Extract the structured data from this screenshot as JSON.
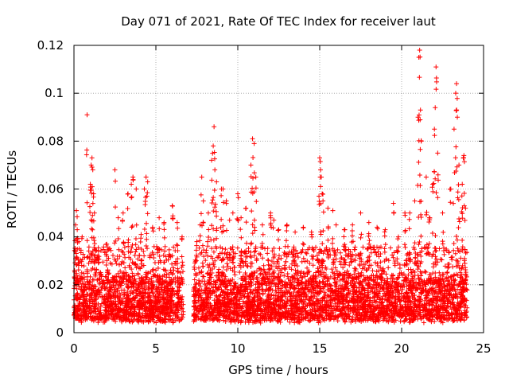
{
  "chart_data": {
    "type": "scatter",
    "title": "Day 071 of 2021, Rate Of TEC Index for receiver laut",
    "xlabel": "GPS time / hours",
    "ylabel": "ROTI / TECUs",
    "xlim": [
      0,
      25
    ],
    "ylim": [
      0,
      0.12
    ],
    "x_ticks": [
      0,
      5,
      10,
      15,
      20,
      25
    ],
    "x_tick_labels": [
      "0",
      "5",
      "10",
      "15",
      "20",
      "25"
    ],
    "y_ticks": [
      0,
      0.02,
      0.04,
      0.06,
      0.08,
      0.1,
      0.12
    ],
    "y_tick_labels": [
      "0",
      "0.02",
      "0.04",
      "0.06",
      "0.08",
      "0.1",
      "0.12"
    ],
    "grid": true,
    "marker": "plus",
    "color": "#ff0000",
    "data_gap_hours": [
      6.7,
      7.3
    ],
    "series": [
      {
        "name": "ROTI",
        "points": [
          [
            0.1,
            0.045
          ],
          [
            0.15,
            0.051
          ],
          [
            0.2,
            0.043
          ],
          [
            0.3,
            0.038
          ],
          [
            0.5,
            0.04
          ],
          [
            0.8,
            0.091
          ],
          [
            1.0,
            0.062
          ],
          [
            1.05,
            0.07
          ],
          [
            1.1,
            0.073
          ],
          [
            1.15,
            0.068
          ],
          [
            1.2,
            0.058
          ],
          [
            1.25,
            0.05
          ],
          [
            1.5,
            0.034
          ],
          [
            2.0,
            0.037
          ],
          [
            2.5,
            0.068
          ],
          [
            2.7,
            0.048
          ],
          [
            3.0,
            0.05
          ],
          [
            3.3,
            0.058
          ],
          [
            3.5,
            0.062
          ],
          [
            3.6,
            0.065
          ],
          [
            3.8,
            0.06
          ],
          [
            4.1,
            0.041
          ],
          [
            4.3,
            0.06
          ],
          [
            4.4,
            0.065
          ],
          [
            4.45,
            0.057
          ],
          [
            4.5,
            0.063
          ],
          [
            4.8,
            0.044
          ],
          [
            5.2,
            0.048
          ],
          [
            5.5,
            0.046
          ],
          [
            6.0,
            0.053
          ],
          [
            6.3,
            0.046
          ],
          [
            6.6,
            0.04
          ],
          [
            7.5,
            0.038
          ],
          [
            7.7,
            0.045
          ],
          [
            7.8,
            0.065
          ],
          [
            7.9,
            0.055
          ],
          [
            8.2,
            0.05
          ],
          [
            8.4,
            0.072
          ],
          [
            8.5,
            0.078
          ],
          [
            8.55,
            0.086
          ],
          [
            8.6,
            0.068
          ],
          [
            8.7,
            0.063
          ],
          [
            9.0,
            0.06
          ],
          [
            9.1,
            0.06
          ],
          [
            9.3,
            0.055
          ],
          [
            9.5,
            0.047
          ],
          [
            9.7,
            0.05
          ],
          [
            10.0,
            0.058
          ],
          [
            10.2,
            0.048
          ],
          [
            10.5,
            0.052
          ],
          [
            10.8,
            0.07
          ],
          [
            10.9,
            0.081
          ],
          [
            11.0,
            0.079
          ],
          [
            11.1,
            0.065
          ],
          [
            11.5,
            0.045
          ],
          [
            12.0,
            0.05
          ],
          [
            12.2,
            0.047
          ],
          [
            12.5,
            0.043
          ],
          [
            13.0,
            0.045
          ],
          [
            13.5,
            0.042
          ],
          [
            14.0,
            0.044
          ],
          [
            14.5,
            0.042
          ],
          [
            15.0,
            0.073
          ],
          [
            15.05,
            0.068
          ],
          [
            15.1,
            0.065
          ],
          [
            15.15,
            0.058
          ],
          [
            15.2,
            0.055
          ],
          [
            15.5,
            0.052
          ],
          [
            15.8,
            0.051
          ],
          [
            16.0,
            0.045
          ],
          [
            16.5,
            0.043
          ],
          [
            17.0,
            0.045
          ],
          [
            17.5,
            0.05
          ],
          [
            18.0,
            0.046
          ],
          [
            18.5,
            0.044
          ],
          [
            19.0,
            0.043
          ],
          [
            19.5,
            0.054
          ],
          [
            19.8,
            0.04
          ],
          [
            20.2,
            0.05
          ],
          [
            20.5,
            0.05
          ],
          [
            20.8,
            0.055
          ],
          [
            21.0,
            0.09
          ],
          [
            21.05,
            0.115
          ],
          [
            21.1,
            0.118
          ],
          [
            21.15,
            0.093
          ],
          [
            21.2,
            0.08
          ],
          [
            21.5,
            0.065
          ],
          [
            21.7,
            0.048
          ],
          [
            21.9,
            0.062
          ],
          [
            22.0,
            0.085
          ],
          [
            22.05,
            0.094
          ],
          [
            22.1,
            0.111
          ],
          [
            22.2,
            0.075
          ],
          [
            22.5,
            0.05
          ],
          [
            23.0,
            0.06
          ],
          [
            23.2,
            0.085
          ],
          [
            23.3,
            0.1
          ],
          [
            23.35,
            0.104
          ],
          [
            23.4,
            0.09
          ],
          [
            23.5,
            0.07
          ],
          [
            23.7,
            0.062
          ],
          [
            23.8,
            0.074
          ],
          [
            23.9,
            0.052
          ]
        ],
        "dense_band": {
          "description": "bulk of observations between approx. 0.002 and 0.035 TECUs",
          "y_range": [
            0.002,
            0.035
          ],
          "x_range": [
            0,
            24
          ],
          "gap": [
            6.7,
            7.3
          ]
        }
      }
    ]
  }
}
